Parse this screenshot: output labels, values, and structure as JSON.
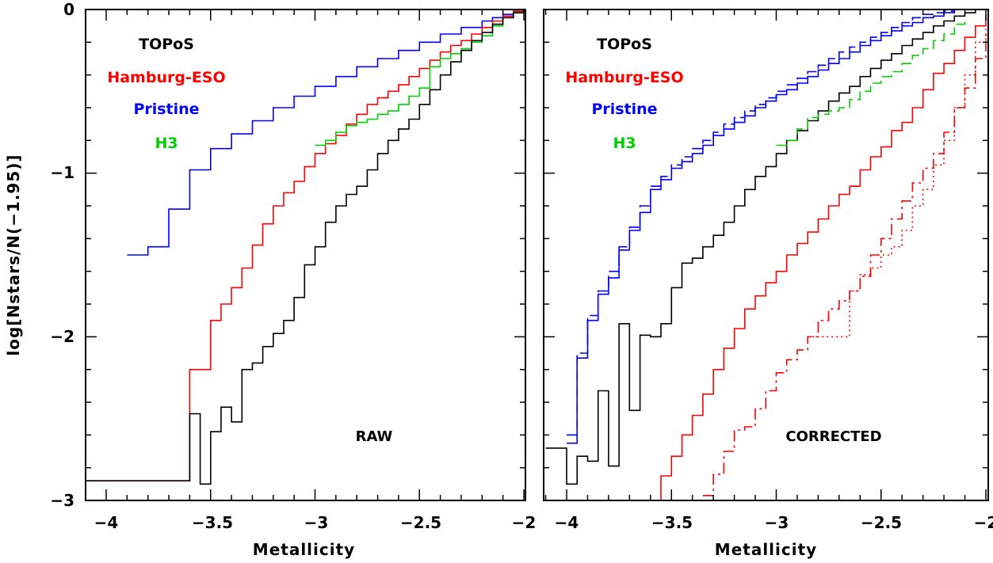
{
  "chart_data": {
    "type": "line",
    "style": "step",
    "ylabel": "log[Nstars/N(−1.95)]",
    "ylim": [
      -3,
      0
    ],
    "yticks": [
      0,
      -1,
      -2,
      -3
    ],
    "ytick_labels": [
      "0",
      "−1",
      "−2",
      "−3"
    ],
    "panels": [
      {
        "id": "raw",
        "label": "RAW",
        "xlabel": "Metallicity",
        "xlim": [
          -4.1,
          -2.0
        ],
        "xticks": [
          -4,
          -3.5,
          -3,
          -2.5,
          -2
        ],
        "xtick_labels": [
          "−4",
          "−3.5",
          "−3",
          "−2.5",
          "−2"
        ],
        "legend": [
          {
            "name": "TOPoS",
            "color": "#000000"
          },
          {
            "name": "Hamburg-ESO",
            "color": "#ff0000"
          },
          {
            "name": "Pristine",
            "color": "#0000ff"
          },
          {
            "name": "H3",
            "color": "#00d000"
          }
        ],
        "series": [
          {
            "name": "Pristine",
            "color": "#0000ff",
            "dash": "solid",
            "x": [
              -3.9,
              -3.85,
              -3.8,
              -3.75,
              -3.7,
              -3.65,
              -3.6,
              -3.55,
              -3.5,
              -3.45,
              -3.4,
              -3.35,
              -3.3,
              -3.25,
              -3.2,
              -3.15,
              -3.1,
              -3.05,
              -3.0,
              -2.95,
              -2.9,
              -2.85,
              -2.8,
              -2.75,
              -2.7,
              -2.65,
              -2.6,
              -2.55,
              -2.5,
              -2.45,
              -2.4,
              -2.35,
              -2.3,
              -2.25,
              -2.2,
              -2.15,
              -2.1,
              -2.05,
              -2.0
            ],
            "y": [
              -1.5,
              -1.5,
              -1.45,
              -1.45,
              -1.22,
              -1.22,
              -0.98,
              -0.98,
              -0.85,
              -0.85,
              -0.76,
              -0.76,
              -0.68,
              -0.68,
              -0.6,
              -0.6,
              -0.53,
              -0.53,
              -0.47,
              -0.47,
              -0.41,
              -0.41,
              -0.35,
              -0.35,
              -0.3,
              -0.3,
              -0.25,
              -0.25,
              -0.2,
              -0.2,
              -0.15,
              -0.15,
              -0.11,
              -0.11,
              -0.07,
              -0.05,
              -0.03,
              -0.01,
              0.0
            ]
          },
          {
            "name": "Hamburg-ESO",
            "color": "#ff0000",
            "dash": "solid",
            "x": [
              -4.1,
              -3.62,
              -3.6,
              -3.5,
              -3.45,
              -3.4,
              -3.35,
              -3.3,
              -3.25,
              -3.2,
              -3.15,
              -3.1,
              -3.05,
              -3.0,
              -2.95,
              -2.9,
              -2.85,
              -2.8,
              -2.75,
              -2.7,
              -2.65,
              -2.6,
              -2.55,
              -2.5,
              -2.45,
              -2.4,
              -2.35,
              -2.3,
              -2.25,
              -2.2,
              -2.15,
              -2.1,
              -2.05,
              -2.0
            ],
            "y": [
              -2.88,
              -2.88,
              -2.2,
              -1.9,
              -1.8,
              -1.7,
              -1.58,
              -1.44,
              -1.31,
              -1.2,
              -1.12,
              -1.05,
              -0.96,
              -0.88,
              -0.82,
              -0.77,
              -0.7,
              -0.64,
              -0.58,
              -0.54,
              -0.5,
              -0.46,
              -0.41,
              -0.36,
              -0.31,
              -0.26,
              -0.22,
              -0.19,
              -0.15,
              -0.11,
              -0.07,
              -0.04,
              -0.01,
              0.0
            ]
          },
          {
            "name": "H3",
            "color": "#00d000",
            "dash": "solid",
            "x": [
              -3.0,
              -2.95,
              -2.9,
              -2.85,
              -2.8,
              -2.75,
              -2.7,
              -2.65,
              -2.6,
              -2.55,
              -2.5,
              -2.45,
              -2.4,
              -2.35,
              -2.3,
              -2.25,
              -2.2,
              -2.15,
              -2.1,
              -2.05,
              -2.0
            ],
            "y": [
              -0.83,
              -0.8,
              -0.75,
              -0.71,
              -0.69,
              -0.67,
              -0.64,
              -0.62,
              -0.58,
              -0.53,
              -0.48,
              -0.35,
              -0.3,
              -0.27,
              -0.24,
              -0.2,
              -0.16,
              -0.1,
              -0.05,
              -0.02,
              0.0
            ]
          },
          {
            "name": "TOPoS",
            "color": "#000000",
            "dash": "solid",
            "x": [
              -4.1,
              -3.62,
              -3.6,
              -3.55,
              -3.5,
              -3.45,
              -3.4,
              -3.35,
              -3.3,
              -3.25,
              -3.2,
              -3.15,
              -3.1,
              -3.05,
              -3.0,
              -2.95,
              -2.9,
              -2.85,
              -2.8,
              -2.75,
              -2.7,
              -2.65,
              -2.6,
              -2.55,
              -2.5,
              -2.45,
              -2.4,
              -2.35,
              -2.3,
              -2.25,
              -2.2,
              -2.15,
              -2.1,
              -2.05,
              -2.0
            ],
            "y": [
              -2.88,
              -2.88,
              -2.47,
              -2.9,
              -2.58,
              -2.43,
              -2.52,
              -2.2,
              -2.16,
              -2.06,
              -1.98,
              -1.9,
              -1.76,
              -1.56,
              -1.45,
              -1.3,
              -1.2,
              -1.13,
              -1.08,
              -0.98,
              -0.88,
              -0.8,
              -0.73,
              -0.67,
              -0.58,
              -0.49,
              -0.4,
              -0.32,
              -0.25,
              -0.19,
              -0.14,
              -0.09,
              -0.05,
              -0.02,
              0.0
            ]
          }
        ]
      },
      {
        "id": "corrected",
        "label": "CORRECTED",
        "xlabel": "Metallicity",
        "xlim": [
          -4.1,
          -2.0
        ],
        "xticks": [
          -4,
          -3.5,
          -3,
          -2.5,
          -2
        ],
        "xtick_labels": [
          "−4",
          "−3.5",
          "−3",
          "−2.5",
          "−2"
        ],
        "legend": [
          {
            "name": "TOPoS",
            "color": "#000000"
          },
          {
            "name": "Hamburg-ESO",
            "color": "#ff0000"
          },
          {
            "name": "Pristine",
            "color": "#0000ff"
          },
          {
            "name": "H3",
            "color": "#00d000"
          }
        ],
        "series": [
          {
            "name": "TOPoS",
            "color": "#000000",
            "dash": "solid",
            "x": [
              -4.1,
              -4.0,
              -3.95,
              -3.9,
              -3.85,
              -3.8,
              -3.75,
              -3.7,
              -3.65,
              -3.6,
              -3.55,
              -3.5,
              -3.45,
              -3.4,
              -3.35,
              -3.3,
              -3.25,
              -3.2,
              -3.15,
              -3.1,
              -3.05,
              -3.0,
              -2.95,
              -2.9,
              -2.85,
              -2.8,
              -2.75,
              -2.7,
              -2.65,
              -2.6,
              -2.55,
              -2.5,
              -2.45,
              -2.4,
              -2.35,
              -2.3,
              -2.25,
              -2.2,
              -2.15,
              -2.1,
              -2.05,
              -2.0
            ],
            "y": [
              -2.68,
              -2.9,
              -2.73,
              -2.76,
              -2.33,
              -2.79,
              -1.92,
              -2.45,
              -1.99,
              -2.0,
              -1.92,
              -1.7,
              -1.55,
              -1.52,
              -1.45,
              -1.38,
              -1.3,
              -1.2,
              -1.1,
              -1.02,
              -0.96,
              -0.88,
              -0.8,
              -0.74,
              -0.68,
              -0.62,
              -0.56,
              -0.51,
              -0.47,
              -0.41,
              -0.36,
              -0.31,
              -0.27,
              -0.22,
              -0.18,
              -0.14,
              -0.1,
              -0.07,
              -0.04,
              -0.02,
              0.0,
              0.0
            ]
          },
          {
            "name": "Pristine (raw)",
            "color": "#0000ff",
            "dash": "solid",
            "x": [
              -4.0,
              -3.95,
              -3.9,
              -3.85,
              -3.8,
              -3.75,
              -3.7,
              -3.65,
              -3.6,
              -3.55,
              -3.5,
              -3.45,
              -3.4,
              -3.35,
              -3.3,
              -3.25,
              -3.2,
              -3.15,
              -3.1,
              -3.05,
              -3.0,
              -2.95,
              -2.9,
              -2.85,
              -2.8,
              -2.75,
              -2.7,
              -2.65,
              -2.6,
              -2.55,
              -2.5,
              -2.45,
              -2.4,
              -2.35,
              -2.3,
              -2.25,
              -2.2,
              -2.15,
              -2.1,
              -2.05,
              -2.0
            ],
            "y": [
              -2.65,
              -2.13,
              -1.9,
              -1.74,
              -1.64,
              -1.47,
              -1.35,
              -1.24,
              -1.1,
              -1.04,
              -0.97,
              -0.93,
              -0.88,
              -0.83,
              -0.77,
              -0.73,
              -0.69,
              -0.65,
              -0.6,
              -0.56,
              -0.52,
              -0.49,
              -0.45,
              -0.41,
              -0.37,
              -0.33,
              -0.3,
              -0.26,
              -0.22,
              -0.19,
              -0.16,
              -0.13,
              -0.1,
              -0.08,
              -0.05,
              -0.04,
              -0.02,
              0.0,
              0.0,
              0.0,
              0.0
            ]
          },
          {
            "name": "Pristine (corrected)",
            "color": "#0000ff",
            "dash": "dashed",
            "x": [
              -4.0,
              -3.95,
              -3.9,
              -3.85,
              -3.8,
              -3.75,
              -3.7,
              -3.65,
              -3.6,
              -3.55,
              -3.5,
              -3.45,
              -3.4,
              -3.35,
              -3.3,
              -3.25,
              -3.2,
              -3.15,
              -3.1,
              -3.05,
              -3.0,
              -2.95,
              -2.9,
              -2.85,
              -2.8,
              -2.75,
              -2.7,
              -2.65,
              -2.6,
              -2.55,
              -2.5,
              -2.45,
              -2.4,
              -2.35,
              -2.3,
              -2.25,
              -2.2,
              -2.15,
              -2.1,
              -2.05,
              -2.0
            ],
            "y": [
              -2.6,
              -2.1,
              -1.87,
              -1.72,
              -1.6,
              -1.45,
              -1.33,
              -1.2,
              -1.08,
              -1.02,
              -0.95,
              -0.9,
              -0.85,
              -0.8,
              -0.75,
              -0.7,
              -0.66,
              -0.62,
              -0.58,
              -0.54,
              -0.5,
              -0.46,
              -0.42,
              -0.38,
              -0.34,
              -0.3,
              -0.26,
              -0.23,
              -0.2,
              -0.17,
              -0.14,
              -0.11,
              -0.08,
              -0.05,
              -0.03,
              -0.02,
              -0.01,
              0.0,
              0.0,
              0.0,
              0.0
            ]
          },
          {
            "name": "H3",
            "color": "#00d000",
            "dash": "dashed",
            "x": [
              -3.0,
              -2.95,
              -2.9,
              -2.85,
              -2.8,
              -2.75,
              -2.7,
              -2.65,
              -2.6,
              -2.55,
              -2.5,
              -2.45,
              -2.4,
              -2.35,
              -2.3,
              -2.25,
              -2.2,
              -2.15,
              -2.1
            ],
            "y": [
              -0.83,
              -0.8,
              -0.73,
              -0.66,
              -0.64,
              -0.62,
              -0.6,
              -0.55,
              -0.5,
              -0.45,
              -0.41,
              -0.38,
              -0.33,
              -0.28,
              -0.24,
              -0.19,
              -0.15,
              -0.09,
              -0.05
            ]
          },
          {
            "name": "Hamburg-ESO",
            "color": "#ff0000",
            "dash": "solid",
            "x": [
              -3.6,
              -3.55,
              -3.5,
              -3.45,
              -3.4,
              -3.35,
              -3.3,
              -3.25,
              -3.2,
              -3.15,
              -3.1,
              -3.05,
              -3.0,
              -2.95,
              -2.9,
              -2.85,
              -2.8,
              -2.75,
              -2.7,
              -2.65,
              -2.6,
              -2.55,
              -2.5,
              -2.45,
              -2.4,
              -2.35,
              -2.3,
              -2.25,
              -2.2,
              -2.15,
              -2.1,
              -2.05,
              -2.0
            ],
            "y": [
              -3.0,
              -2.85,
              -2.73,
              -2.6,
              -2.48,
              -2.35,
              -2.2,
              -2.07,
              -1.95,
              -1.83,
              -1.75,
              -1.67,
              -1.6,
              -1.5,
              -1.43,
              -1.36,
              -1.28,
              -1.2,
              -1.13,
              -1.08,
              -0.98,
              -0.9,
              -0.84,
              -0.74,
              -0.69,
              -0.6,
              -0.49,
              -0.39,
              -0.33,
              -0.25,
              -0.17,
              -0.1,
              -0.03
            ]
          },
          {
            "name": "Hamburg-ESO (dash-dot)",
            "color": "#ff0000",
            "dash": "dashdot",
            "x": [
              -3.35,
              -3.3,
              -3.25,
              -3.2,
              -3.15,
              -3.1,
              -3.05,
              -3.0,
              -2.95,
              -2.9,
              -2.85,
              -2.8,
              -2.75,
              -2.7,
              -2.65,
              -2.6,
              -2.55,
              -2.5,
              -2.45,
              -2.4,
              -2.35,
              -2.3,
              -2.25,
              -2.2,
              -2.15,
              -2.1,
              -2.05,
              -2.0
            ],
            "y": [
              -2.97,
              -2.84,
              -2.7,
              -2.57,
              -2.55,
              -2.44,
              -2.33,
              -2.22,
              -2.14,
              -2.08,
              -2.0,
              -1.9,
              -1.83,
              -1.78,
              -1.72,
              -1.63,
              -1.5,
              -1.4,
              -1.28,
              -1.17,
              -1.06,
              -0.97,
              -0.88,
              -0.75,
              -0.6,
              -0.48,
              -0.3,
              -0.15
            ]
          },
          {
            "name": "Hamburg-ESO (dotted)",
            "color": "#ff0000",
            "dash": "dotted",
            "x": [
              -2.85,
              -2.8,
              -2.75,
              -2.7,
              -2.65,
              -2.6,
              -2.55,
              -2.5,
              -2.45,
              -2.4,
              -2.35,
              -2.3,
              -2.25,
              -2.2,
              -2.15,
              -2.1,
              -2.05,
              -2.0
            ],
            "y": [
              -2.0,
              -2.0,
              -2.0,
              -2.0,
              -1.72,
              -1.62,
              -1.58,
              -1.5,
              -1.45,
              -1.35,
              -1.2,
              -1.1,
              -0.95,
              -0.8,
              -0.6,
              -0.4,
              -0.2,
              -0.1
            ]
          }
        ]
      }
    ]
  }
}
